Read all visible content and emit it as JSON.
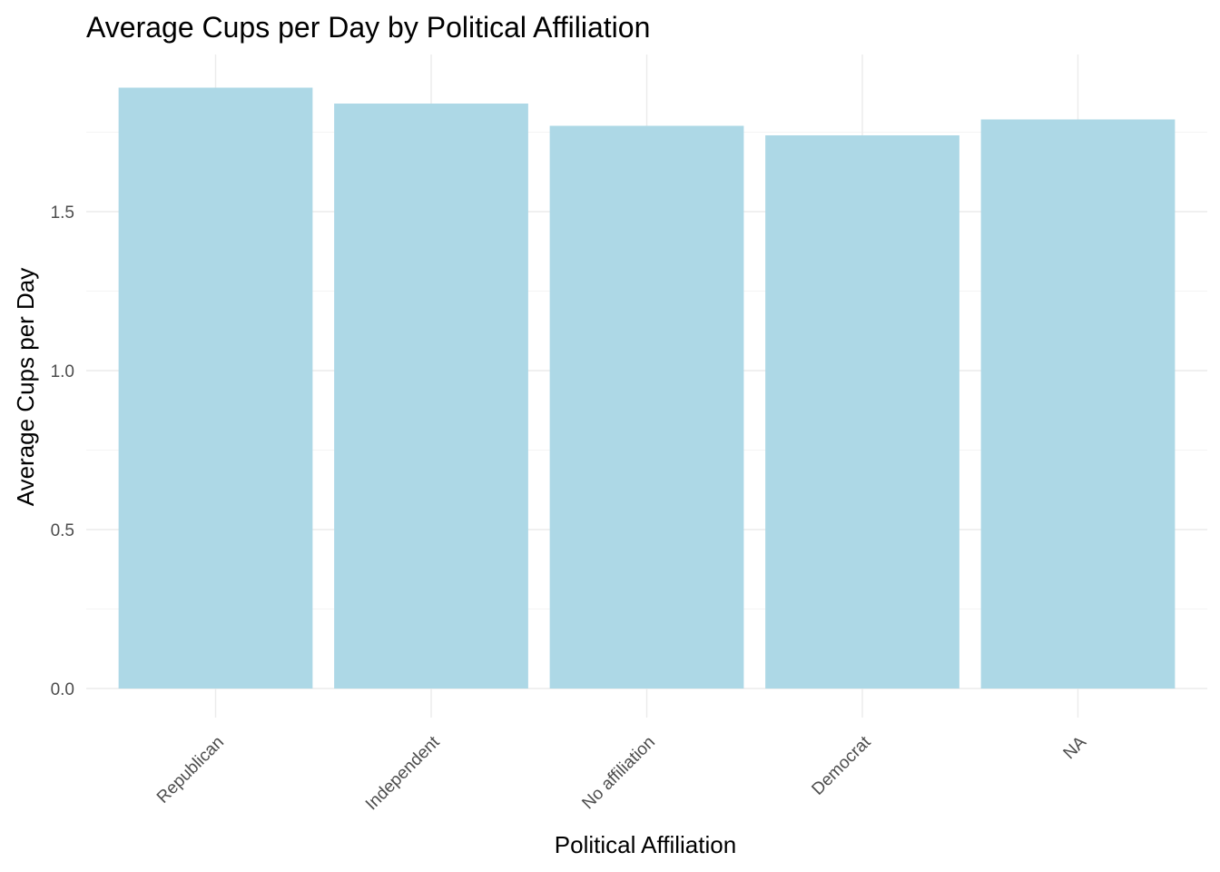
{
  "chart_data": {
    "type": "bar",
    "title": "Average Cups per Day by Political Affiliation",
    "xlabel": "Political Affiliation",
    "ylabel": "Average Cups per Day",
    "categories": [
      "Republican",
      "Independent",
      "No affiliation",
      "Democrat",
      "NA"
    ],
    "values": [
      1.89,
      1.84,
      1.77,
      1.74,
      1.79
    ],
    "yticks": [
      "0.0",
      "0.5",
      "1.0",
      "1.5"
    ],
    "ylim": [
      0,
      1.985
    ],
    "bar_color": "#add8e6",
    "grid": true,
    "legend": "none"
  }
}
